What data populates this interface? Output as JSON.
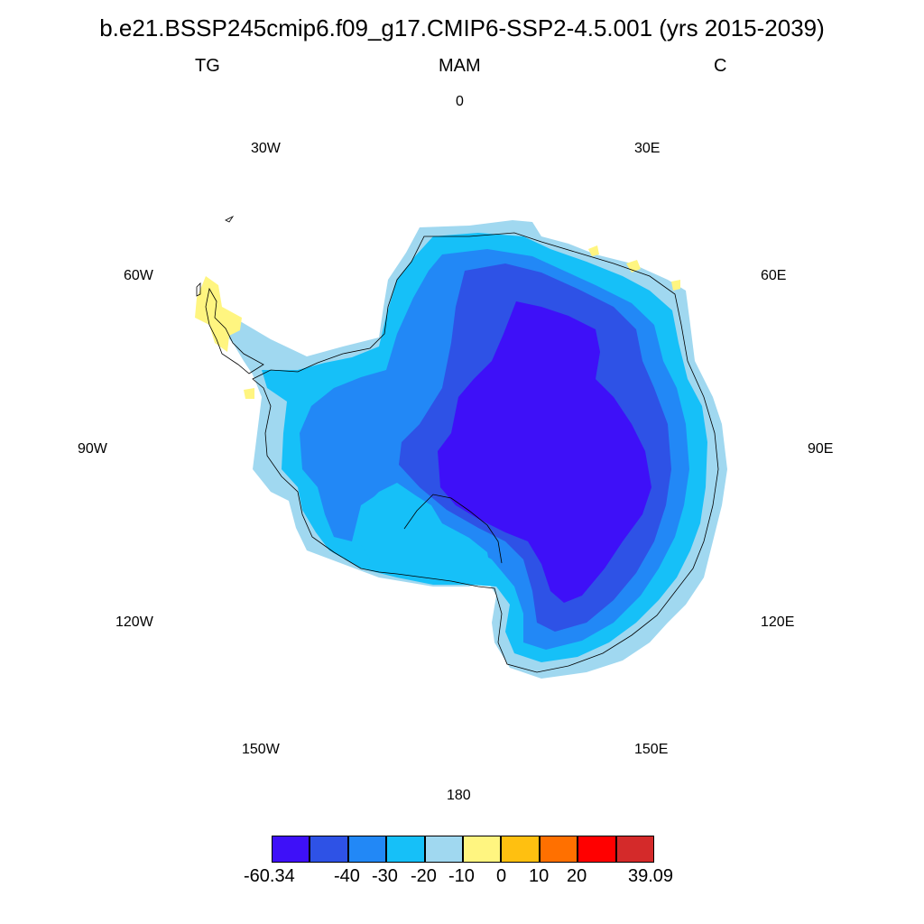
{
  "title": "b.e21.BSSP245cmip6.f09_g17.CMIP6-SSP2-4.5.001 (yrs 2015-2039)",
  "subtitle": {
    "left": "TG",
    "center": "MAM",
    "right": "C"
  },
  "longitude_labels": {
    "lon_0": "0",
    "lon_30E": "30E",
    "lon_60E": "60E",
    "lon_90E": "90E",
    "lon_120E": "120E",
    "lon_150E": "150E",
    "lon_180": "180",
    "lon_150W": "150W",
    "lon_120W": "120W",
    "lon_90W": "90W",
    "lon_60W": "60W",
    "lon_30W": "30W"
  },
  "colorbar": {
    "colors": [
      "#3e10f8",
      "#2e52e6",
      "#2288f6",
      "#16c0f8",
      "#a0d8f0",
      "#fff580",
      "#ffc010",
      "#ff7000",
      "#ff0000",
      "#d42a2a"
    ],
    "labels": {
      "min": "-60.34",
      "l1": "-40",
      "l2": "-30",
      "l3": "-20",
      "l4": "-10",
      "l5": "0",
      "l6": "10",
      "l7": "20",
      "max": "39.09"
    }
  },
  "legend_colors": {
    "very_cold": "#3e10f8",
    "cold": "#2e52e6",
    "cool": "#2288f6",
    "mild": "#16c0f8",
    "near_zero": "#a0d8f0",
    "warm": "#fff580"
  }
}
